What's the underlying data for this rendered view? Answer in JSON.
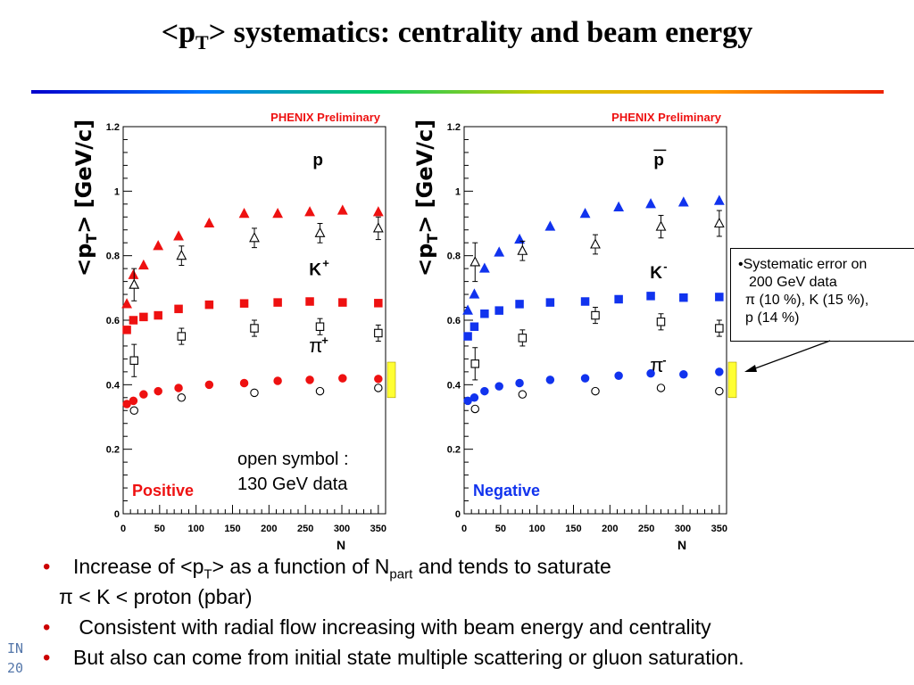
{
  "slide": {
    "title_pre": "<p",
    "title_sub": "T",
    "title_post": "> systematics: centrality and beam energy",
    "footer_line1": "IN",
    "footer_line2": "20",
    "colors": {
      "positive": "#ee1111",
      "negative": "#1133ee",
      "open": "#000000",
      "highlight": "#ffff33"
    }
  },
  "ylabel": {
    "pre": "<p",
    "sub": "T",
    "post": "> [GeV/c]"
  },
  "note": {
    "line1": "•Systematic error on",
    "line2": "200 GeV data",
    "line3": "π (10 %), K (15 %),",
    "line4": "p (14 %)"
  },
  "open_symbol_label": {
    "line1": "open symbol :",
    "line2": "130 GeV data"
  },
  "bullets": [
    {
      "pre": "Increase of <p",
      "sub1": "T",
      "mid": "> as a function of N",
      "sub2": "part",
      "post": " and tends to saturate"
    },
    {
      "text": "π < K < proton (pbar)"
    },
    {
      "text": " Consistent with radial flow increasing with beam energy and centrality"
    },
    {
      "text": "But also can come from initial state multiple scattering or gluon saturation."
    }
  ],
  "chart_data": [
    {
      "type": "scatter",
      "title": "PHENIX Preliminary",
      "panel_label": "Positive",
      "xlabel": "N",
      "ylabel": "<pT> [GeV/c]",
      "xlim": [
        0,
        360
      ],
      "ylim": [
        0,
        1.2
      ],
      "x_ticks": [
        0,
        50,
        100,
        150,
        200,
        250,
        300,
        350
      ],
      "y_ticks": [
        0,
        0.2,
        0.4,
        0.6,
        0.8,
        1,
        1.2
      ],
      "y_tick_labels": [
        "0",
        "0.2",
        "0.4",
        "0.6",
        "0.8",
        "1",
        "1.2"
      ],
      "grid": false,
      "species_labels": [
        {
          "text": "p",
          "sup": "",
          "x": 260,
          "y": 1.08
        },
        {
          "text": "K",
          "sup": "+",
          "x": 255,
          "y": 0.74
        },
        {
          "text": "π",
          "sup": "+",
          "x": 255,
          "y": 0.5
        }
      ],
      "series": [
        {
          "name": "p",
          "energy": "200 GeV",
          "marker": "triangle",
          "filled": true,
          "x": [
            5,
            14,
            28,
            48,
            76,
            118,
            166,
            212,
            256,
            301,
            350
          ],
          "y": [
            0.65,
            0.74,
            0.77,
            0.83,
            0.86,
            0.9,
            0.93,
            0.93,
            0.935,
            0.94,
            0.935
          ]
        },
        {
          "name": "K+",
          "energy": "200 GeV",
          "marker": "square",
          "filled": true,
          "x": [
            5,
            14,
            28,
            48,
            76,
            118,
            166,
            212,
            256,
            301,
            350
          ],
          "y": [
            0.57,
            0.6,
            0.61,
            0.615,
            0.635,
            0.648,
            0.652,
            0.655,
            0.658,
            0.655,
            0.653
          ]
        },
        {
          "name": "π+",
          "energy": "200 GeV",
          "marker": "circle",
          "filled": true,
          "x": [
            5,
            14,
            28,
            48,
            76,
            118,
            166,
            212,
            256,
            301,
            350
          ],
          "y": [
            0.34,
            0.35,
            0.37,
            0.38,
            0.39,
            0.4,
            0.405,
            0.412,
            0.415,
            0.42,
            0.418
          ]
        },
        {
          "name": "p",
          "energy": "130 GeV",
          "marker": "triangle",
          "filled": false,
          "x": [
            15,
            80,
            180,
            270,
            350
          ],
          "y": [
            0.71,
            0.8,
            0.855,
            0.87,
            0.885
          ],
          "err": [
            0.05,
            0.03,
            0.03,
            0.03,
            0.035
          ]
        },
        {
          "name": "K+",
          "energy": "130 GeV",
          "marker": "square",
          "filled": false,
          "x": [
            15,
            80,
            180,
            270,
            350
          ],
          "y": [
            0.475,
            0.55,
            0.575,
            0.58,
            0.56
          ],
          "err": [
            0.05,
            0.025,
            0.025,
            0.025,
            0.025
          ]
        },
        {
          "name": "π+",
          "energy": "130 GeV",
          "marker": "circle",
          "filled": false,
          "x": [
            15,
            80,
            180,
            270,
            350
          ],
          "y": [
            0.32,
            0.36,
            0.375,
            0.38,
            0.39
          ],
          "err": [
            0,
            0,
            0,
            0,
            0
          ]
        }
      ]
    },
    {
      "type": "scatter",
      "title": "PHENIX Preliminary",
      "panel_label": "Negative",
      "xlabel": "N",
      "ylabel": "<pT> [GeV/c]",
      "xlim": [
        0,
        360
      ],
      "ylim": [
        0,
        1.2
      ],
      "x_ticks": [
        0,
        50,
        100,
        150,
        200,
        250,
        300,
        350
      ],
      "y_ticks": [
        0,
        0.2,
        0.4,
        0.6,
        0.8,
        1,
        1.2
      ],
      "y_tick_labels": [
        "0",
        "0.2",
        "0.4",
        "0.6",
        "0.8",
        "1",
        "1.2"
      ],
      "grid": false,
      "species_labels": [
        {
          "text": "p",
          "sup": "",
          "overline": true,
          "x": 260,
          "y": 1.08
        },
        {
          "text": "K",
          "sup": "-",
          "x": 255,
          "y": 0.73
        },
        {
          "text": "π",
          "sup": "-",
          "x": 255,
          "y": 0.44
        }
      ],
      "series": [
        {
          "name": "pbar",
          "energy": "200 GeV",
          "marker": "triangle",
          "filled": true,
          "x": [
            5,
            14,
            28,
            48,
            76,
            118,
            166,
            212,
            256,
            301,
            350
          ],
          "y": [
            0.63,
            0.68,
            0.76,
            0.81,
            0.85,
            0.89,
            0.93,
            0.95,
            0.96,
            0.965,
            0.97
          ]
        },
        {
          "name": "K-",
          "energy": "200 GeV",
          "marker": "square",
          "filled": true,
          "x": [
            5,
            14,
            28,
            48,
            76,
            118,
            166,
            212,
            256,
            301,
            350
          ],
          "y": [
            0.55,
            0.58,
            0.62,
            0.63,
            0.65,
            0.655,
            0.658,
            0.665,
            0.675,
            0.67,
            0.672
          ]
        },
        {
          "name": "π-",
          "energy": "200 GeV",
          "marker": "circle",
          "filled": true,
          "x": [
            5,
            14,
            28,
            48,
            76,
            118,
            166,
            212,
            256,
            301,
            350
          ],
          "y": [
            0.35,
            0.36,
            0.38,
            0.395,
            0.405,
            0.415,
            0.42,
            0.428,
            0.435,
            0.432,
            0.44
          ]
        },
        {
          "name": "pbar",
          "energy": "130 GeV",
          "marker": "triangle",
          "filled": false,
          "x": [
            15,
            80,
            180,
            270,
            350
          ],
          "y": [
            0.78,
            0.815,
            0.835,
            0.89,
            0.9
          ],
          "err": [
            0.06,
            0.03,
            0.03,
            0.035,
            0.04
          ]
        },
        {
          "name": "K-",
          "energy": "130 GeV",
          "marker": "square",
          "filled": false,
          "x": [
            15,
            80,
            180,
            270,
            350
          ],
          "y": [
            0.465,
            0.545,
            0.615,
            0.595,
            0.575
          ],
          "err": [
            0.05,
            0.025,
            0.025,
            0.025,
            0.025
          ]
        },
        {
          "name": "π-",
          "energy": "130 GeV",
          "marker": "circle",
          "filled": false,
          "x": [
            15,
            80,
            180,
            270,
            350
          ],
          "y": [
            0.325,
            0.37,
            0.38,
            0.39,
            0.38
          ],
          "err": [
            0,
            0,
            0,
            0,
            0
          ]
        }
      ]
    }
  ]
}
